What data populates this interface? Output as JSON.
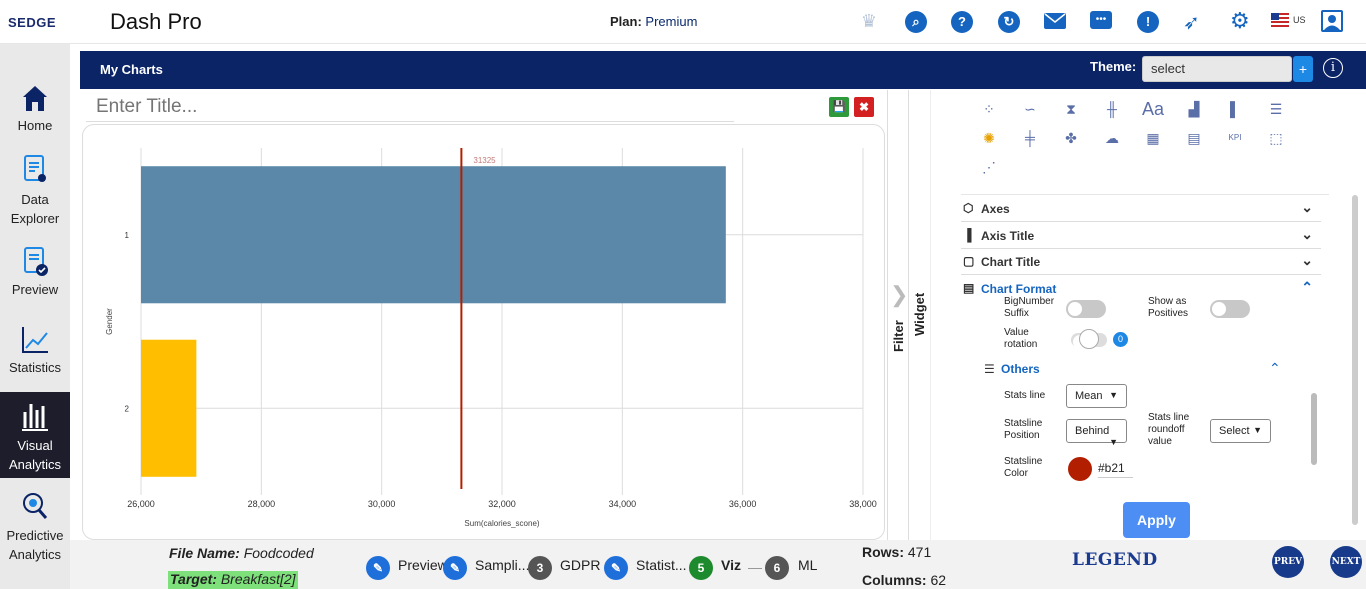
{
  "app": {
    "logo": "SEDGE",
    "title": "Dash Pro",
    "plan_label": "Plan:",
    "plan_value": "Premium",
    "locale": "US"
  },
  "topbar_icons": [
    "crown-icon",
    "search-icon",
    "help-icon",
    "refresh-icon",
    "mail-icon",
    "chat-icon",
    "alert-icon",
    "rocket-icon",
    "settings-icon",
    "us-flag-icon",
    "user-icon"
  ],
  "sidebar": {
    "items": [
      {
        "label": "Home",
        "icon": "home-icon"
      },
      {
        "label": "Data Explorer",
        "icon": "data-explorer-icon"
      },
      {
        "label": "Preview",
        "icon": "preview-icon"
      },
      {
        "label": "Statistics",
        "icon": "statistics-icon"
      },
      {
        "label": "Visual Analytics",
        "icon": "visual-analytics-icon",
        "active": true
      },
      {
        "label": "Predictive Analytics",
        "icon": "predictive-analytics-icon"
      }
    ]
  },
  "header": {
    "title": "My Charts",
    "theme_label": "Theme:",
    "theme_value": "select",
    "add_label": "+",
    "info_label": "i"
  },
  "editor": {
    "title_placeholder": "Enter Title...",
    "save_icon": "save-icon",
    "close_icon": "close-icon"
  },
  "tabs": {
    "filter": "Filter",
    "widget": "Widget"
  },
  "chart_data": {
    "type": "bar",
    "orientation": "horizontal",
    "categories": [
      "1",
      "2"
    ],
    "values": [
      35720,
      26920
    ],
    "colors": [
      "#5b88a8",
      "#ffbf00"
    ],
    "xlim": [
      26000,
      38000
    ],
    "xticks": [
      "26,000",
      "28,000",
      "30,000",
      "32,000",
      "34,000",
      "36,000",
      "38,000"
    ],
    "xlabel": "Sum(calories_scone)",
    "ylabel": "Gender",
    "stats_line": {
      "value": 31325,
      "label": "31325",
      "color": "#b21f00"
    },
    "grid": true
  },
  "settings": {
    "accordions": [
      {
        "label": "Axes",
        "icon": "axes-icon"
      },
      {
        "label": "Axis Title",
        "icon": "axis-title-icon"
      },
      {
        "label": "Chart Title",
        "icon": "chart-title-icon"
      },
      {
        "label": "Chart Format",
        "icon": "chart-format-icon",
        "open": true
      }
    ],
    "bignumber_suffix": "BigNumber Suffix",
    "show_as_positives": "Show as Positives",
    "value_rotation": "Value rotation",
    "value_rotation_count": "0",
    "others": "Others",
    "stats_line_label": "Stats line",
    "stats_line_value": "Mean",
    "statsline_position_label": "Statsline Position",
    "statsline_position_value": "Behind",
    "stats_line_roundoff_label": "Stats line roundoff value",
    "stats_line_roundoff_value": "Select",
    "statsline_color_label": "Statsline Color",
    "statsline_color_value": "#b21",
    "statsline_color": "#b21f00",
    "apply": "Apply"
  },
  "footer": {
    "file_label": "File Name:",
    "file_value": "Foodcoded",
    "target_label": "Target:",
    "target_value": "Breakfast[2]",
    "steps": [
      {
        "label": "Preview",
        "marker": "edit"
      },
      {
        "label": "Sampli...",
        "marker": "edit"
      },
      {
        "label": "GDPR",
        "marker": "3",
        "color": "#555555"
      },
      {
        "label": "Statist...",
        "marker": "edit"
      },
      {
        "label": "Viz",
        "marker": "5",
        "color": "#1e8a2e"
      },
      {
        "label": "ML",
        "marker": "6",
        "color": "#555555"
      }
    ],
    "rows_label": "Rows:",
    "rows_value": "471",
    "cols_label": "Columns:",
    "cols_value": "62",
    "legend": "LEGEND",
    "prev": "PREV",
    "next": "NEXT"
  }
}
